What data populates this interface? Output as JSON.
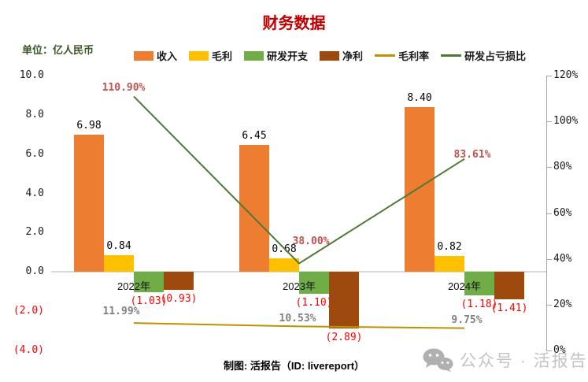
{
  "title": "财务数据",
  "title_color": "#C00000",
  "unit_label": "单位：亿人民币",
  "unit_label_color": "#375623",
  "footer": "制图: 活报告（ID: livereport）",
  "watermark": {
    "icon": "wechat-icon",
    "text": "公众号 · 活报告"
  },
  "chart_data": {
    "type": "bar",
    "subtype": "bar-line-combo",
    "categories": [
      "2022年",
      "2023年",
      "2024年"
    ],
    "bar_series": [
      {
        "name": "收入",
        "color": "#ED7D31",
        "values": [
          6.98,
          6.45,
          8.4
        ],
        "labels": [
          "6.98",
          "6.45",
          "8.40"
        ],
        "label_color": "#000000"
      },
      {
        "name": "毛利",
        "color": "#FFC000",
        "values": [
          0.84,
          0.68,
          0.82
        ],
        "labels": [
          "0.84",
          "0.68",
          "0.82"
        ],
        "label_color": "#000000"
      },
      {
        "name": "研发开支",
        "color": "#70AD47",
        "values": [
          -1.03,
          -1.1,
          -1.18
        ],
        "labels": [
          "(1.03)",
          "(1.10)",
          "(1.18)"
        ],
        "label_color": "#FF0000"
      },
      {
        "name": "净利",
        "color": "#9E490E",
        "values": [
          -0.93,
          -2.89,
          -1.41
        ],
        "labels": [
          "(0.93)",
          "(2.89)",
          "(1.41)"
        ],
        "label_color": "#FF0000"
      }
    ],
    "line_series": [
      {
        "name": "毛利率",
        "color": "#BF9000",
        "values_pct": [
          11.99,
          10.53,
          9.75
        ],
        "labels": [
          "11.99%",
          "10.53%",
          "9.75%"
        ],
        "label_color": "#808080"
      },
      {
        "name": "研发占亏损比",
        "color": "#4E7A36",
        "values_pct": [
          110.9,
          38.0,
          83.61
        ],
        "labels": [
          "110.90%",
          "38.00%",
          "83.61%"
        ],
        "label_color": "#C0504D"
      }
    ],
    "left_axis": {
      "title": "",
      "tick_labels": [
        "10.0",
        "8.0",
        "6.0",
        "4.0",
        "2.0",
        "0.0",
        "(2.0)",
        "(4.0)"
      ],
      "tick_values": [
        10,
        8,
        6,
        4,
        2,
        0,
        -2,
        -4
      ],
      "range": [
        -4,
        10
      ],
      "negative_color": "#FF0000"
    },
    "right_axis": {
      "title": "",
      "tick_labels": [
        "120%",
        "100%",
        "80%",
        "60%",
        "40%",
        "20%",
        "0%"
      ],
      "tick_values": [
        120,
        100,
        80,
        60,
        40,
        20,
        0
      ],
      "range": [
        0,
        120
      ]
    },
    "grid": "zero-line-only",
    "legend_position": "top"
  }
}
